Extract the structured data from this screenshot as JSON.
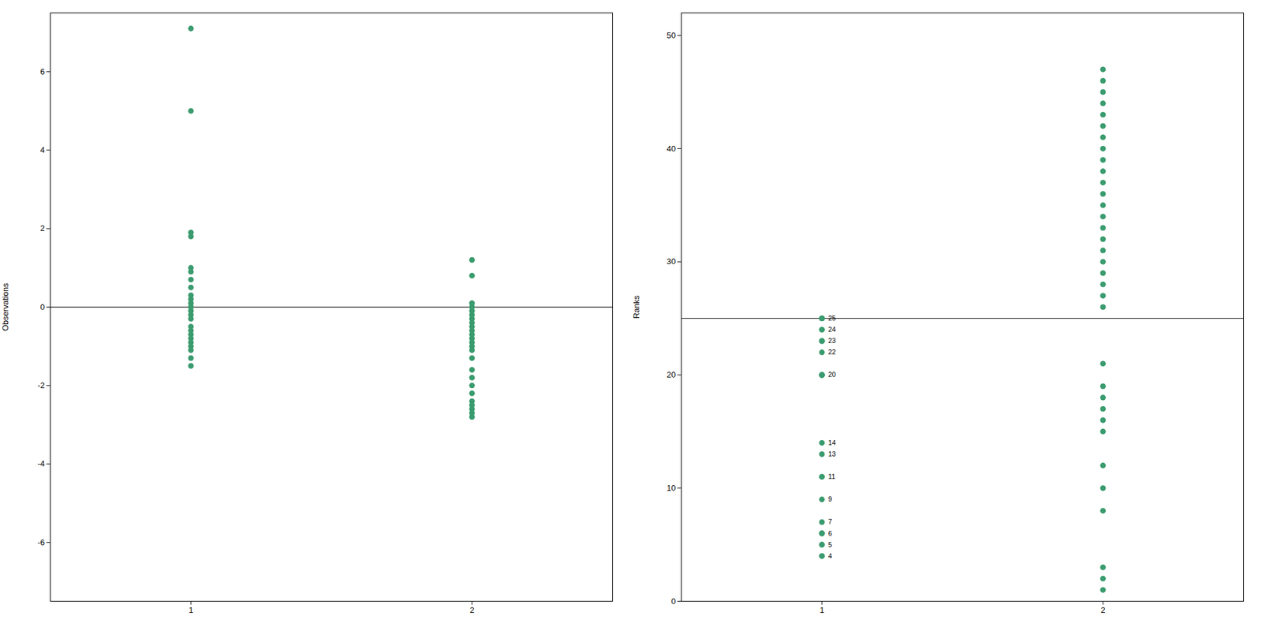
{
  "chart_data": [
    {
      "type": "scatter",
      "x": [
        1,
        1,
        1,
        1,
        1,
        1,
        1,
        1,
        1,
        1,
        1,
        1,
        1,
        1,
        1,
        1,
        1,
        1,
        1,
        1,
        1,
        1,
        1,
        1,
        1,
        2,
        2,
        2,
        2,
        2,
        2,
        2,
        2,
        2,
        2,
        2,
        2,
        2,
        2,
        2,
        2,
        2,
        2,
        2,
        2,
        2,
        2,
        2,
        2,
        2
      ],
      "values": [
        7.1,
        5.0,
        1.9,
        1.8,
        1.0,
        0.9,
        0.7,
        0.5,
        0.3,
        0.2,
        0.1,
        0.0,
        0.0,
        -0.1,
        -0.2,
        -0.3,
        -0.5,
        -0.6,
        -0.7,
        -0.8,
        -0.9,
        -1.0,
        -1.1,
        -1.3,
        -1.5,
        1.2,
        0.8,
        0.1,
        0.0,
        -0.1,
        -0.2,
        -0.3,
        -0.4,
        -0.5,
        -0.6,
        -0.7,
        -0.8,
        -0.9,
        -1.0,
        -1.1,
        -1.3,
        -1.6,
        -1.8,
        -2.0,
        -2.2,
        -2.4,
        -2.5,
        -2.6,
        -2.7,
        -2.8
      ],
      "color": "#3a9b6e",
      "xlim": [
        0.5,
        2.5
      ],
      "xticks": [
        1,
        2
      ],
      "ylim": [
        -7.5,
        7.5
      ],
      "yticks": [
        -6,
        -4,
        -2,
        0,
        2,
        4,
        6
      ],
      "ylabel": "Observations",
      "hline": 0
    },
    {
      "type": "scatter",
      "x": [
        1,
        1,
        1,
        1,
        1,
        1,
        1,
        1,
        1,
        1,
        1,
        1,
        1,
        1,
        1,
        1,
        1,
        1,
        1,
        1,
        1,
        1,
        1,
        1,
        1,
        1,
        1,
        1,
        1,
        2,
        2,
        2,
        2,
        2,
        2,
        2,
        2,
        2,
        2,
        2,
        2,
        2,
        2,
        2,
        2,
        2,
        2,
        2,
        2,
        2,
        2,
        2,
        2,
        2,
        2,
        2,
        2,
        2,
        2,
        2,
        2,
        2,
        2
      ],
      "values": [
        4,
        4,
        5,
        5,
        6,
        6,
        6,
        7,
        9,
        11,
        11,
        13,
        14,
        20,
        20,
        20,
        20,
        20,
        22,
        23,
        23,
        23,
        24,
        24,
        25,
        25,
        25,
        25,
        25,
        1,
        2,
        3,
        8,
        10,
        12,
        15,
        16,
        17,
        18,
        19,
        21,
        26,
        27,
        28,
        29,
        30,
        31,
        32,
        33,
        34,
        35,
        36,
        37,
        38,
        39,
        40,
        41,
        42,
        43,
        44,
        45,
        46,
        47
      ],
      "color": "#3a9b6e",
      "xlim": [
        0.5,
        2.5
      ],
      "xticks": [
        1,
        2
      ],
      "ylim": [
        0,
        52
      ],
      "yticks": [
        0,
        10,
        20,
        30,
        40,
        50
      ],
      "ylabel": "Ranks",
      "hline": 25,
      "annotations": [
        {
          "x": 1,
          "y": 4,
          "text": "4"
        },
        {
          "x": 1,
          "y": 5,
          "text": "5"
        },
        {
          "x": 1,
          "y": 6,
          "text": "6"
        },
        {
          "x": 1,
          "y": 7,
          "text": "7"
        },
        {
          "x": 1,
          "y": 9,
          "text": "9"
        },
        {
          "x": 1,
          "y": 11,
          "text": "11"
        },
        {
          "x": 1,
          "y": 13,
          "text": "13"
        },
        {
          "x": 1,
          "y": 14,
          "text": "14"
        },
        {
          "x": 1,
          "y": 20,
          "text": "20"
        },
        {
          "x": 1,
          "y": 22,
          "text": "22"
        },
        {
          "x": 1,
          "y": 23,
          "text": "23"
        },
        {
          "x": 1,
          "y": 24,
          "text": "24"
        },
        {
          "x": 1,
          "y": 25,
          "text": "25"
        }
      ]
    }
  ]
}
